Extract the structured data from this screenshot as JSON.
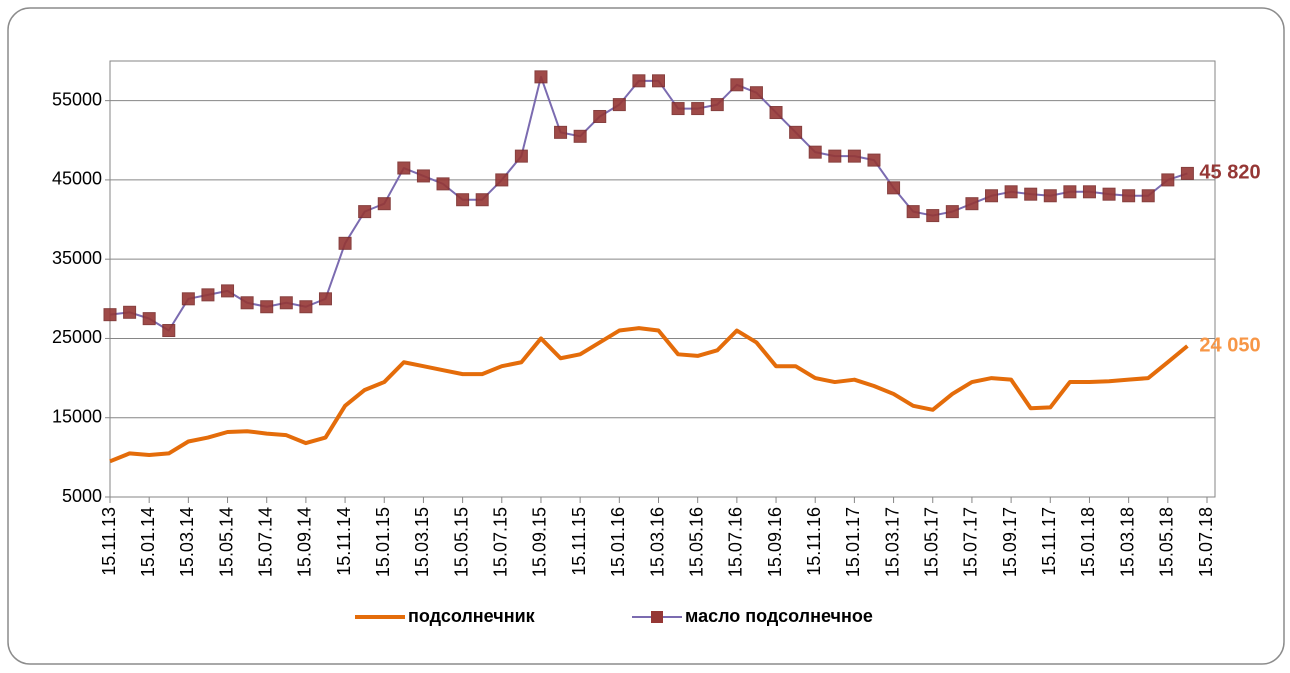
{
  "chart_data": {
    "type": "line",
    "categories": [
      "15.11.13",
      null,
      "15.01.14",
      null,
      "15.03.14",
      null,
      "15.05.14",
      null,
      "15.07.14",
      null,
      "15.09.14",
      null,
      "15.11.14",
      null,
      "15.01.15",
      null,
      "15.03.15",
      null,
      "15.05.15",
      null,
      "15.07.15",
      null,
      "15.09.15",
      null,
      "15.11.15",
      null,
      "15.01.16",
      null,
      "15.03.16",
      null,
      "15.05.16",
      null,
      "15.07.16",
      null,
      "15.09.16",
      null,
      "15.11.16",
      null,
      "15.01.17",
      null,
      "15.03.17",
      null,
      "15.05.17",
      null,
      "15.07.17",
      null,
      "15.09.17",
      null,
      "15.11.17",
      null,
      "15.01.18",
      null,
      "15.03.18",
      null,
      "15.05.18",
      null,
      "15.07.18"
    ],
    "series": [
      {
        "name": "подсолнечник",
        "color": "#e46c0a",
        "label_color": "#f79646",
        "values": [
          9500,
          10500,
          10300,
          10500,
          12000,
          12500,
          13200,
          13300,
          13000,
          12800,
          11800,
          12500,
          16500,
          18500,
          19500,
          22000,
          21500,
          21000,
          20500,
          20500,
          21500,
          22000,
          25000,
          22500,
          23000,
          24500,
          26000,
          26300,
          26000,
          23000,
          22800,
          23500,
          26000,
          24500,
          21500,
          21500,
          20000,
          19500,
          19800,
          19000,
          18000,
          16500,
          16000,
          18000,
          19500,
          20000,
          19800,
          16200,
          16300,
          19500,
          19500,
          19600,
          19800,
          20000,
          22000,
          24050,
          null
        ],
        "value_labels": [
          null,
          null,
          null,
          null,
          null,
          null,
          null,
          null,
          null,
          null,
          null,
          null,
          null,
          null,
          null,
          null,
          null,
          null,
          null,
          null,
          null,
          null,
          null,
          null,
          null,
          null,
          null,
          null,
          null,
          null,
          null,
          null,
          null,
          null,
          null,
          null,
          null,
          null,
          null,
          null,
          null,
          null,
          null,
          null,
          null,
          null,
          null,
          null,
          null,
          null,
          null,
          null,
          null,
          null,
          null,
          "24 050",
          null
        ]
      },
      {
        "name": "масло подсолнечное",
        "color": "#7b6bb0",
        "marker_color": "#953735",
        "label_color": "#953735",
        "values": [
          28000,
          28300,
          27500,
          26000,
          30000,
          30500,
          31000,
          29500,
          29000,
          29500,
          29000,
          30000,
          37000,
          41000,
          42000,
          46500,
          45500,
          44500,
          42500,
          42500,
          45000,
          48000,
          58000,
          51000,
          50500,
          53000,
          54500,
          57500,
          57500,
          54000,
          54000,
          54500,
          57000,
          56000,
          53500,
          51000,
          48500,
          48000,
          48000,
          47500,
          44000,
          41000,
          40500,
          41000,
          42000,
          43000,
          43500,
          43200,
          43000,
          43500,
          43500,
          43200,
          43000,
          43000,
          45000,
          45820,
          null
        ],
        "value_labels": [
          null,
          null,
          null,
          null,
          null,
          null,
          null,
          null,
          null,
          null,
          null,
          null,
          null,
          null,
          null,
          null,
          null,
          null,
          null,
          null,
          null,
          null,
          null,
          null,
          null,
          null,
          null,
          null,
          null,
          null,
          null,
          null,
          null,
          null,
          null,
          null,
          null,
          null,
          null,
          null,
          null,
          null,
          null,
          null,
          null,
          null,
          null,
          null,
          null,
          null,
          null,
          null,
          null,
          null,
          null,
          "45 820",
          null
        ]
      }
    ],
    "ylim": [
      5000,
      60000
    ],
    "yticks": [
      5000,
      15000,
      25000,
      35000,
      45000,
      55000
    ],
    "grid": true,
    "legend": "bottom"
  }
}
